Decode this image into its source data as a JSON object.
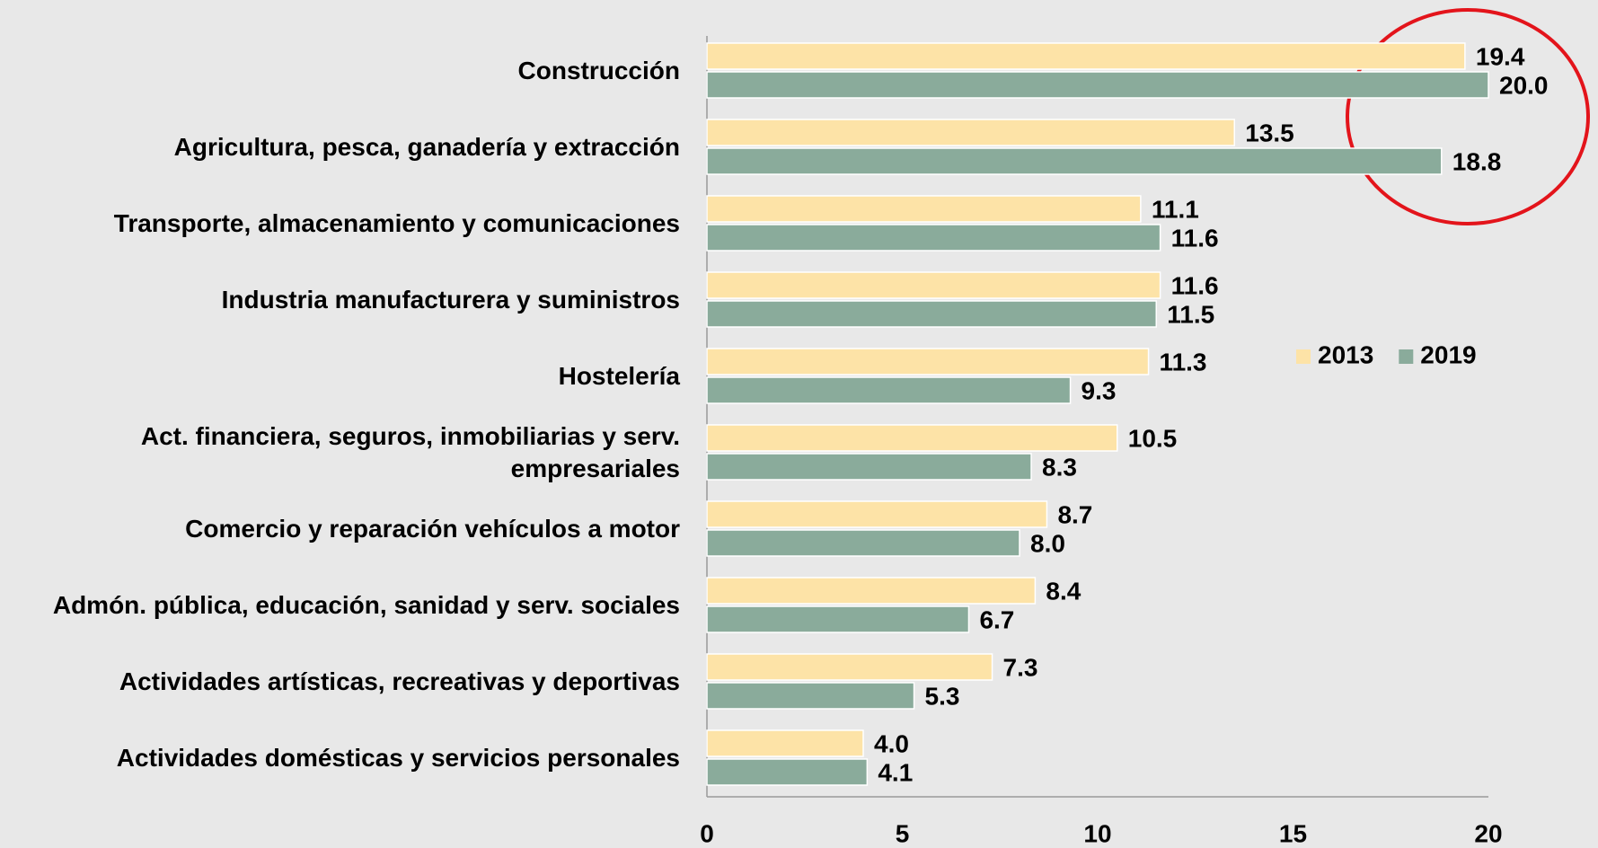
{
  "chart_data": {
    "type": "hbar",
    "categories": [
      "Construcción",
      "Agricultura, pesca, ganadería y extracción",
      "Transporte, almacenamiento y comunicaciones",
      "Industria manufacturera y suministros",
      "Hostelería",
      "Act. financiera, seguros, inmobiliarias y serv. empresariales",
      "Comercio y reparación vehículos a motor",
      "Admón. pública, educación, sanidad y serv. sociales",
      "Actividades artísticas, recreativas y deportivas",
      "Actividades domésticas y servicios personales"
    ],
    "series": [
      {
        "name": "2013",
        "color": "#fde3a7",
        "values": [
          19.4,
          13.5,
          11.1,
          11.6,
          11.3,
          10.5,
          8.7,
          8.4,
          7.3,
          4.0
        ],
        "value_labels": [
          "19.4",
          "13.5",
          "11.1",
          "11.6",
          "11.3",
          "10.5",
          "8.7",
          "8.4",
          "7.3",
          "4.0"
        ]
      },
      {
        "name": "2019",
        "color": "#8aab9b",
        "values": [
          20.0,
          18.8,
          11.6,
          11.5,
          9.3,
          8.3,
          8.0,
          6.7,
          5.3,
          4.1
        ],
        "value_labels": [
          "20.0",
          "18.8",
          "11.6",
          "11.5",
          "9.3",
          "8.3",
          "8.0",
          "6.7",
          "5.3",
          "4.1"
        ]
      }
    ],
    "xlim": [
      0,
      20
    ],
    "xticks": [
      0,
      5,
      10,
      15,
      20
    ],
    "legend": "right"
  }
}
